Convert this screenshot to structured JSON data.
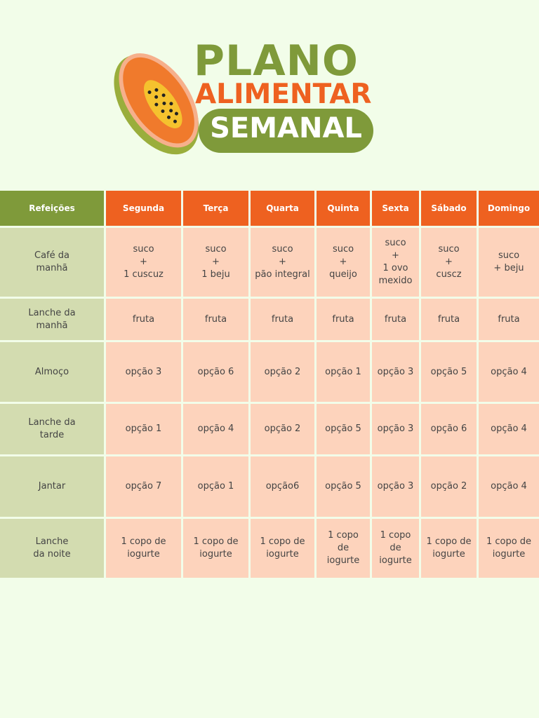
{
  "header": {
    "title_line1": "PLANO",
    "title_line2": "ALIMENTAR",
    "title_line3": "SEMANAL"
  },
  "table": {
    "columns": [
      "Refeições",
      "Segunda",
      "Terça",
      "Quarta",
      "Quinta",
      "Sexta",
      "Sábado",
      "Domingo"
    ],
    "rows": [
      {
        "meal": [
          "Café da",
          "manhã"
        ],
        "cells": [
          [
            "suco",
            "+",
            "1 cuscuz"
          ],
          [
            "suco",
            "+",
            "1 beju"
          ],
          [
            "suco",
            "+",
            "pão integral"
          ],
          [
            "suco",
            "+",
            "queijo"
          ],
          [
            "suco",
            "+",
            "1 ovo",
            "mexido"
          ],
          [
            "suco",
            "+",
            "cuscz"
          ],
          [
            "suco",
            "+ beju"
          ]
        ]
      },
      {
        "meal": [
          "Lanche da",
          "manhã"
        ],
        "cells": [
          [
            "fruta"
          ],
          [
            "fruta"
          ],
          [
            "fruta"
          ],
          [
            "fruta"
          ],
          [
            "fruta"
          ],
          [
            "fruta"
          ],
          [
            "fruta"
          ]
        ]
      },
      {
        "meal": [
          "Almoço"
        ],
        "cells": [
          [
            "opção 3"
          ],
          [
            "opção 6"
          ],
          [
            "opção 2"
          ],
          [
            "opção 1"
          ],
          [
            "opção 3"
          ],
          [
            "opção 5"
          ],
          [
            "opção 4"
          ]
        ]
      },
      {
        "meal": [
          "Lanche da",
          "tarde"
        ],
        "cells": [
          [
            "opção 1"
          ],
          [
            "opção 4"
          ],
          [
            "opção 2"
          ],
          [
            "opção 5"
          ],
          [
            "opção 3"
          ],
          [
            "opção 6"
          ],
          [
            "opção 4"
          ]
        ]
      },
      {
        "meal": [
          "Jantar"
        ],
        "cells": [
          [
            "opção 7"
          ],
          [
            "opção 1"
          ],
          [
            "opção6"
          ],
          [
            "opção 5"
          ],
          [
            "opção 3"
          ],
          [
            "opção 2"
          ],
          [
            "opção 4"
          ]
        ]
      },
      {
        "meal": [
          "Lanche",
          "da noite"
        ],
        "cells": [
          [
            "1 copo de",
            "iogurte"
          ],
          [
            "1 copo de",
            "iogurte"
          ],
          [
            "1 copo de",
            "iogurte"
          ],
          [
            "1 copo",
            "de",
            "iogurte"
          ],
          [
            "1 copo",
            "de",
            "iogurte"
          ],
          [
            "1 copo de",
            "iogurte"
          ],
          [
            "1 copo de",
            "iogurte"
          ]
        ]
      }
    ]
  }
}
